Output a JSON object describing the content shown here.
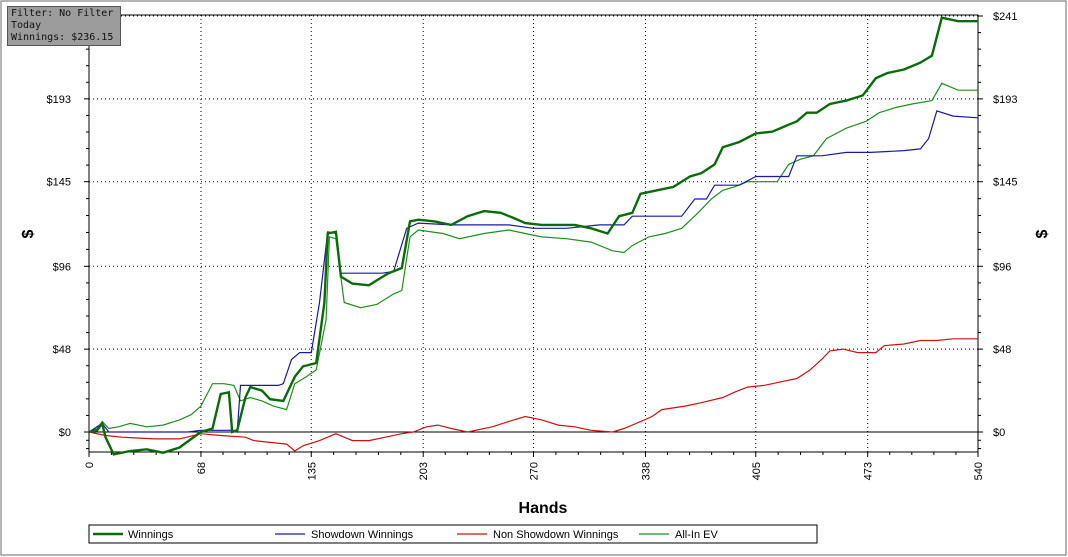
{
  "filter_box": {
    "line1": "Filter: No Filter",
    "line2": "Today",
    "line3": "Winnings: $236.15"
  },
  "colors": {
    "winnings": "#0a6b0a",
    "showdown": "#1a1aa0",
    "non_showdown": "#cc1111",
    "allin_ev": "#1f8f1f",
    "grid": "#000000",
    "zero_line": "#000000"
  },
  "chart_data": {
    "type": "line",
    "title": "",
    "xlabel": "Hands",
    "ylabel": "$",
    "xlim": [
      0,
      540
    ],
    "ylim": [
      -10,
      241
    ],
    "x_ticks": [
      "0",
      "68",
      "135",
      "203",
      "270",
      "338",
      "405",
      "473",
      "540"
    ],
    "x_tick_values": [
      0,
      68,
      135,
      203,
      270,
      338,
      405,
      473,
      540
    ],
    "y_ticks": [
      "$0",
      "$48",
      "$96",
      "$145",
      "$193",
      "$241"
    ],
    "y_tick_values": [
      0,
      48,
      96,
      145,
      193,
      241
    ],
    "grid": true,
    "legend_position": "bottom",
    "series": [
      {
        "name": "Winnings",
        "key": "winnings",
        "points": [
          [
            0,
            0
          ],
          [
            5,
            1
          ],
          [
            8,
            5
          ],
          [
            10,
            -3
          ],
          [
            15,
            -13
          ],
          [
            25,
            -11
          ],
          [
            35,
            -10
          ],
          [
            45,
            -12
          ],
          [
            55,
            -9
          ],
          [
            65,
            -2
          ],
          [
            68,
            0
          ],
          [
            75,
            2
          ],
          [
            80,
            22
          ],
          [
            85,
            23
          ],
          [
            87,
            0
          ],
          [
            90,
            1
          ],
          [
            95,
            20
          ],
          [
            98,
            26
          ],
          [
            105,
            24
          ],
          [
            110,
            19
          ],
          [
            118,
            18
          ],
          [
            125,
            32
          ],
          [
            130,
            38
          ],
          [
            138,
            40
          ],
          [
            143,
            75
          ],
          [
            145,
            115
          ],
          [
            150,
            116
          ],
          [
            153,
            90
          ],
          [
            160,
            86
          ],
          [
            170,
            85
          ],
          [
            175,
            88
          ],
          [
            182,
            92
          ],
          [
            190,
            95
          ],
          [
            195,
            122
          ],
          [
            200,
            123
          ],
          [
            210,
            122
          ],
          [
            220,
            120
          ],
          [
            230,
            125
          ],
          [
            240,
            128
          ],
          [
            250,
            127
          ],
          [
            258,
            124
          ],
          [
            265,
            121
          ],
          [
            275,
            120
          ],
          [
            285,
            120
          ],
          [
            295,
            120
          ],
          [
            305,
            118
          ],
          [
            315,
            115
          ],
          [
            322,
            125
          ],
          [
            330,
            127
          ],
          [
            335,
            138
          ],
          [
            345,
            140
          ],
          [
            355,
            142
          ],
          [
            365,
            148
          ],
          [
            372,
            150
          ],
          [
            380,
            155
          ],
          [
            385,
            165
          ],
          [
            395,
            168
          ],
          [
            405,
            173
          ],
          [
            415,
            174
          ],
          [
            425,
            178
          ],
          [
            430,
            180
          ],
          [
            436,
            185
          ],
          [
            442,
            185
          ],
          [
            450,
            190
          ],
          [
            460,
            192
          ],
          [
            470,
            195
          ],
          [
            478,
            205
          ],
          [
            485,
            208
          ],
          [
            495,
            210
          ],
          [
            500,
            212
          ],
          [
            505,
            214
          ],
          [
            512,
            218
          ],
          [
            518,
            240
          ],
          [
            528,
            238
          ],
          [
            540,
            238
          ]
        ]
      },
      {
        "name": "Showdown Winnings",
        "key": "showdown",
        "points": [
          [
            0,
            0
          ],
          [
            8,
            5
          ],
          [
            12,
            0
          ],
          [
            20,
            0
          ],
          [
            40,
            0
          ],
          [
            60,
            0
          ],
          [
            68,
            1
          ],
          [
            80,
            1
          ],
          [
            88,
            1
          ],
          [
            90,
            0
          ],
          [
            92,
            27
          ],
          [
            100,
            27
          ],
          [
            115,
            27
          ],
          [
            118,
            28
          ],
          [
            123,
            42
          ],
          [
            128,
            46
          ],
          [
            135,
            46
          ],
          [
            140,
            75
          ],
          [
            145,
            116
          ],
          [
            150,
            115
          ],
          [
            153,
            92
          ],
          [
            165,
            92
          ],
          [
            178,
            92
          ],
          [
            185,
            93
          ],
          [
            193,
            118
          ],
          [
            200,
            121
          ],
          [
            220,
            120
          ],
          [
            240,
            120
          ],
          [
            255,
            120
          ],
          [
            270,
            118
          ],
          [
            290,
            118
          ],
          [
            310,
            120
          ],
          [
            320,
            120
          ],
          [
            325,
            120
          ],
          [
            330,
            125
          ],
          [
            360,
            125
          ],
          [
            368,
            135
          ],
          [
            375,
            135
          ],
          [
            380,
            143
          ],
          [
            395,
            143
          ],
          [
            405,
            148
          ],
          [
            425,
            148
          ],
          [
            430,
            160
          ],
          [
            445,
            160
          ],
          [
            460,
            162
          ],
          [
            475,
            162
          ],
          [
            495,
            163
          ],
          [
            505,
            164
          ],
          [
            510,
            170
          ],
          [
            515,
            186
          ],
          [
            525,
            183
          ],
          [
            540,
            182
          ]
        ]
      },
      {
        "name": "Non Showdown Winnings",
        "key": "non_showdown",
        "points": [
          [
            0,
            0
          ],
          [
            10,
            -2
          ],
          [
            20,
            -3
          ],
          [
            40,
            -4
          ],
          [
            55,
            -4
          ],
          [
            68,
            -1
          ],
          [
            80,
            -2
          ],
          [
            95,
            -3
          ],
          [
            100,
            -5
          ],
          [
            110,
            -6
          ],
          [
            120,
            -7
          ],
          [
            125,
            -11
          ],
          [
            130,
            -8
          ],
          [
            140,
            -5
          ],
          [
            145,
            -3
          ],
          [
            150,
            -1
          ],
          [
            155,
            -3
          ],
          [
            160,
            -5
          ],
          [
            170,
            -5
          ],
          [
            180,
            -3
          ],
          [
            190,
            -1
          ],
          [
            197,
            0
          ],
          [
            205,
            3
          ],
          [
            212,
            4
          ],
          [
            220,
            2
          ],
          [
            230,
            0
          ],
          [
            245,
            3
          ],
          [
            258,
            7
          ],
          [
            265,
            9
          ],
          [
            275,
            7
          ],
          [
            285,
            4
          ],
          [
            295,
            3
          ],
          [
            305,
            1
          ],
          [
            318,
            0
          ],
          [
            325,
            2
          ],
          [
            335,
            6
          ],
          [
            342,
            9
          ],
          [
            348,
            13
          ],
          [
            362,
            15
          ],
          [
            372,
            17
          ],
          [
            385,
            20
          ],
          [
            392,
            23
          ],
          [
            400,
            26
          ],
          [
            410,
            27
          ],
          [
            420,
            29
          ],
          [
            430,
            31
          ],
          [
            438,
            36
          ],
          [
            445,
            42
          ],
          [
            450,
            47
          ],
          [
            458,
            48
          ],
          [
            467,
            46
          ],
          [
            478,
            46
          ],
          [
            483,
            50
          ],
          [
            495,
            51
          ],
          [
            505,
            53
          ],
          [
            515,
            53
          ],
          [
            525,
            54
          ],
          [
            540,
            54
          ]
        ]
      },
      {
        "name": "All-In EV",
        "key": "allin_ev",
        "points": [
          [
            0,
            0
          ],
          [
            5,
            2
          ],
          [
            8,
            6
          ],
          [
            12,
            2
          ],
          [
            18,
            3
          ],
          [
            25,
            5
          ],
          [
            35,
            3
          ],
          [
            45,
            4
          ],
          [
            55,
            7
          ],
          [
            62,
            10
          ],
          [
            68,
            15
          ],
          [
            75,
            28
          ],
          [
            82,
            28
          ],
          [
            88,
            27
          ],
          [
            92,
            18
          ],
          [
            98,
            20
          ],
          [
            105,
            18
          ],
          [
            112,
            15
          ],
          [
            120,
            13
          ],
          [
            125,
            28
          ],
          [
            132,
            32
          ],
          [
            138,
            36
          ],
          [
            144,
            65
          ],
          [
            146,
            113
          ],
          [
            150,
            112
          ],
          [
            155,
            75
          ],
          [
            165,
            72
          ],
          [
            175,
            74
          ],
          [
            185,
            80
          ],
          [
            190,
            82
          ],
          [
            195,
            113
          ],
          [
            200,
            117
          ],
          [
            215,
            115
          ],
          [
            225,
            112
          ],
          [
            240,
            115
          ],
          [
            255,
            117
          ],
          [
            265,
            115
          ],
          [
            275,
            113
          ],
          [
            290,
            112
          ],
          [
            305,
            110
          ],
          [
            318,
            105
          ],
          [
            325,
            104
          ],
          [
            330,
            108
          ],
          [
            340,
            113
          ],
          [
            350,
            115
          ],
          [
            360,
            118
          ],
          [
            370,
            127
          ],
          [
            378,
            135
          ],
          [
            385,
            140
          ],
          [
            392,
            142
          ],
          [
            400,
            145
          ],
          [
            410,
            145
          ],
          [
            418,
            145
          ],
          [
            425,
            155
          ],
          [
            432,
            158
          ],
          [
            440,
            160
          ],
          [
            448,
            170
          ],
          [
            460,
            176
          ],
          [
            472,
            180
          ],
          [
            480,
            185
          ],
          [
            490,
            188
          ],
          [
            500,
            190
          ],
          [
            512,
            192
          ],
          [
            518,
            202
          ],
          [
            528,
            198
          ],
          [
            540,
            198
          ]
        ]
      }
    ]
  }
}
